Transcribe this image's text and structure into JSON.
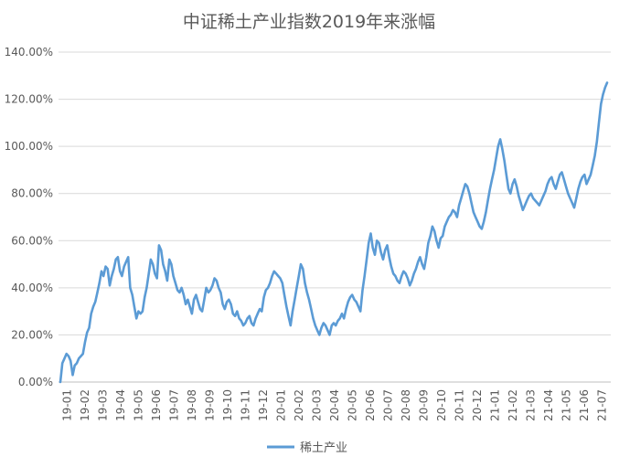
{
  "chart_data": {
    "type": "line",
    "title": "中证稀土产业指数2019年来涨幅",
    "xlabel": "",
    "ylabel": "",
    "ylim": [
      0,
      140
    ],
    "y_ticks": [
      "0.00%",
      "20.00%",
      "40.00%",
      "60.00%",
      "80.00%",
      "100.00%",
      "120.00%",
      "140.00%"
    ],
    "x_ticks": [
      "19-01",
      "19-02",
      "19-03",
      "19-04",
      "19-05",
      "19-06",
      "19-07",
      "19-08",
      "19-09",
      "19-10",
      "19-11",
      "19-12",
      "20-01",
      "20-02",
      "20-03",
      "20-04",
      "20-05",
      "20-06",
      "20-07",
      "20-08",
      "20-09",
      "20-10",
      "20-11",
      "20-12",
      "21-01",
      "21-02",
      "21-03",
      "21-04",
      "21-05",
      "21-06",
      "21-07"
    ],
    "grid": "horizontal",
    "legend_position": "bottom",
    "line_color": "#5b9bd5",
    "series": [
      {
        "name": "稀土产业",
        "x_range": [
          "19-01",
          "21-07"
        ],
        "values": [
          0,
          8,
          10,
          12,
          11,
          9,
          3,
          7,
          8,
          10,
          11,
          12,
          17,
          21,
          23,
          29,
          32,
          34,
          38,
          42,
          47,
          45,
          49,
          48,
          41,
          45,
          48,
          52,
          53,
          47,
          45,
          49,
          51,
          53,
          40,
          37,
          32,
          27,
          30,
          29,
          30,
          36,
          40,
          46,
          52,
          50,
          46,
          44,
          58,
          56,
          50,
          47,
          43,
          52,
          50,
          45,
          42,
          39,
          38,
          40,
          37,
          33,
          35,
          32,
          29,
          35,
          37,
          34,
          31,
          30,
          35,
          40,
          38,
          39,
          41,
          44,
          43,
          40,
          38,
          33,
          31,
          34,
          35,
          33,
          29,
          28,
          30,
          27,
          26,
          24,
          25,
          27,
          28,
          25,
          24,
          27,
          29,
          31,
          30,
          36,
          39,
          40,
          42,
          45,
          47,
          46,
          45,
          44,
          42,
          37,
          32,
          28,
          24,
          30,
          35,
          40,
          45,
          50,
          48,
          42,
          38,
          35,
          31,
          27,
          24,
          22,
          20,
          23,
          25,
          24,
          22,
          20,
          24,
          25,
          24,
          26,
          27,
          29,
          27,
          31,
          34,
          36,
          37,
          35,
          34,
          32,
          30,
          39,
          45,
          52,
          59,
          63,
          57,
          54,
          60,
          59,
          55,
          52,
          56,
          58,
          53,
          49,
          46,
          45,
          43,
          42,
          45,
          47,
          46,
          44,
          41,
          43,
          46,
          48,
          51,
          53,
          50,
          48,
          53,
          59,
          62,
          66,
          64,
          60,
          57,
          61,
          62,
          66,
          68,
          70,
          71,
          73,
          72,
          70,
          75,
          78,
          81,
          84,
          83,
          80,
          76,
          72,
          70,
          68,
          66,
          65,
          68,
          72,
          77,
          82,
          86,
          90,
          95,
          100,
          103,
          99,
          94,
          88,
          82,
          80,
          84,
          86,
          83,
          79,
          76,
          73,
          75,
          77,
          79,
          80,
          78,
          77,
          76,
          75,
          77,
          79,
          81,
          84,
          86,
          87,
          84,
          82,
          85,
          88,
          89,
          86,
          83,
          80,
          78,
          76,
          74,
          78,
          82,
          85,
          87,
          88,
          84,
          86,
          88,
          92,
          96,
          102,
          110,
          118,
          122,
          125,
          127
        ]
      }
    ]
  }
}
